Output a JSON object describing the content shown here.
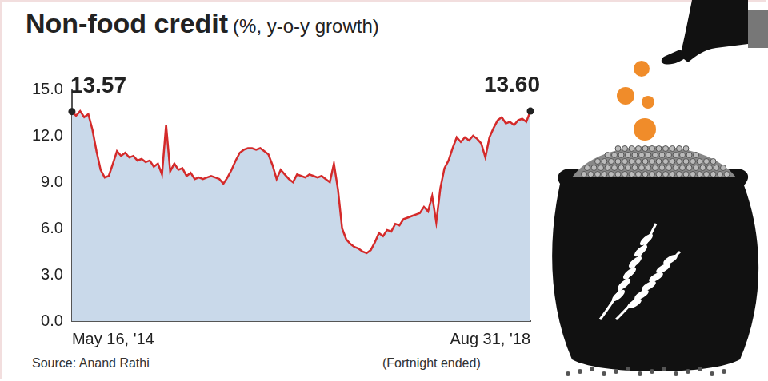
{
  "chart_data": {
    "type": "line",
    "title": "Non-food credit",
    "subtitle": "(%, y-o-y growth)",
    "source": "Source: Anand Rathi",
    "note": "(Fortnight ended)",
    "categories": [
      "May 16, '14",
      null,
      null,
      null,
      null,
      null,
      null,
      null,
      null,
      null,
      null,
      null,
      null,
      null,
      null,
      null,
      null,
      null,
      null,
      null,
      null,
      null,
      null,
      null,
      null,
      null,
      null,
      null,
      null,
      null,
      null,
      null,
      null,
      null,
      null,
      null,
      null,
      null,
      null,
      null,
      null,
      null,
      null,
      null,
      null,
      null,
      null,
      null,
      null,
      null,
      null,
      null,
      null,
      null,
      null,
      null,
      null,
      null,
      null,
      null,
      null,
      null,
      null,
      null,
      null,
      null,
      null,
      null,
      null,
      null,
      null,
      null,
      null,
      null,
      null,
      null,
      null,
      null,
      null,
      null,
      null,
      null,
      null,
      null,
      null,
      null,
      null,
      null,
      null,
      null,
      null,
      null,
      null,
      null,
      null,
      null,
      null,
      null,
      null,
      null,
      null,
      null,
      null,
      null,
      null,
      null,
      null,
      null,
      null,
      null,
      null,
      null,
      "Aug 31, '18"
    ],
    "values": [
      13.57,
      13.3,
      13.6,
      13.2,
      13.4,
      12.4,
      11.0,
      9.8,
      9.3,
      9.4,
      10.2,
      11.0,
      10.7,
      10.9,
      10.6,
      10.7,
      10.4,
      10.5,
      10.3,
      10.4,
      10.0,
      10.2,
      9.5,
      12.7,
      9.7,
      10.2,
      9.8,
      9.9,
      9.4,
      9.6,
      9.2,
      9.3,
      9.2,
      9.3,
      9.4,
      9.3,
      9.2,
      8.9,
      9.3,
      9.8,
      10.4,
      10.9,
      11.1,
      11.2,
      11.2,
      11.1,
      11.2,
      11.0,
      10.8,
      10.1,
      9.2,
      9.8,
      9.5,
      9.2,
      9.0,
      9.5,
      9.4,
      9.3,
      9.5,
      9.4,
      9.3,
      9.4,
      9.2,
      9.0,
      10.2,
      8.5,
      6.0,
      5.3,
      5.0,
      4.8,
      4.7,
      4.5,
      4.4,
      4.6,
      5.1,
      5.7,
      5.5,
      5.9,
      5.8,
      6.3,
      6.2,
      6.6,
      6.7,
      6.8,
      6.9,
      7.0,
      7.4,
      7.1,
      8.1,
      6.4,
      8.6,
      9.9,
      10.4,
      11.2,
      11.9,
      11.6,
      11.9,
      11.7,
      12.0,
      11.8,
      11.5,
      10.6,
      11.9,
      12.5,
      13.0,
      13.2,
      12.8,
      12.9,
      12.7,
      13.0,
      13.1,
      12.9,
      13.6
    ],
    "color": "#d42a2a",
    "ylim": [
      0,
      15
    ],
    "yticks": [
      {
        "value": 0,
        "label": "0.0"
      },
      {
        "value": 3,
        "label": "3.0"
      },
      {
        "value": 6,
        "label": "6.0"
      },
      {
        "value": 9,
        "label": "9.0"
      },
      {
        "value": 12,
        "label": "12.0"
      },
      {
        "value": 15,
        "label": "15.0"
      }
    ],
    "grid": false,
    "annotations": [
      {
        "text": "13.57",
        "category": "May 16, '14",
        "value": 13.57
      },
      {
        "text": "13.60",
        "category": "Aug 31, '18",
        "value": 13.6
      }
    ]
  }
}
